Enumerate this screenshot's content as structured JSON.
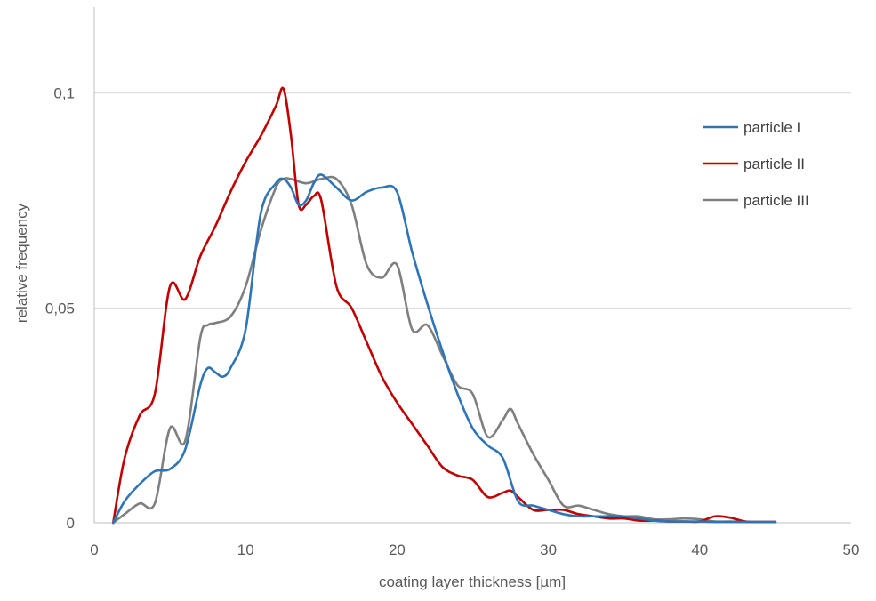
{
  "chart_data": {
    "type": "line",
    "title": "",
    "xlabel": "coating layer thickness [µm]",
    "ylabel": "relative frequency",
    "xlim": [
      0,
      50
    ],
    "ylim": [
      0,
      0.12
    ],
    "x_ticks": [
      0,
      10,
      20,
      30,
      40,
      50
    ],
    "x_tick_labels": [
      "0",
      "10",
      "20",
      "30",
      "40",
      "50"
    ],
    "y_ticks": [
      0,
      0.05,
      0.1
    ],
    "y_tick_labels": [
      "0",
      "0,05",
      "0,1"
    ],
    "grid": "horizontal",
    "legend_position": "right",
    "series": [
      {
        "name": "particle I",
        "color": "#2E75B6",
        "x": [
          1.25,
          2,
          3,
          4,
          5,
          6,
          7,
          7.5,
          8,
          8.5,
          9,
          10,
          11,
          12,
          12.5,
          13,
          13.5,
          14,
          14.5,
          15,
          16,
          17,
          18,
          19,
          20,
          21,
          22,
          23,
          24,
          25,
          26,
          27,
          28,
          29,
          30,
          31,
          32,
          33,
          34,
          35,
          36,
          37,
          38,
          39,
          40,
          41,
          42,
          43,
          44,
          45
        ],
        "y": [
          0,
          0.005,
          0.009,
          0.012,
          0.0125,
          0.017,
          0.032,
          0.036,
          0.035,
          0.034,
          0.036,
          0.045,
          0.072,
          0.079,
          0.08,
          0.078,
          0.074,
          0.075,
          0.079,
          0.081,
          0.078,
          0.075,
          0.077,
          0.078,
          0.077,
          0.063,
          0.051,
          0.04,
          0.03,
          0.022,
          0.018,
          0.015,
          0.005,
          0.004,
          0.003,
          0.002,
          0.0015,
          0.0015,
          0.0015,
          0.0015,
          0.001,
          0.0005,
          0.0003,
          0.0003,
          0.0003,
          0.0002,
          0.0002,
          0.0002,
          0.0002,
          0.0002
        ]
      },
      {
        "name": "particle II",
        "color": "#C00000",
        "x": [
          1.25,
          2,
          3,
          4,
          5,
          6,
          7,
          8,
          9,
          10,
          11,
          12,
          12.5,
          13,
          13.5,
          14,
          14.5,
          15,
          16,
          17,
          18,
          19,
          20,
          21,
          22,
          23,
          24,
          25,
          26,
          27,
          27.5,
          28,
          29,
          30,
          31,
          32,
          33,
          34,
          35,
          36,
          37,
          38,
          39,
          40,
          41,
          42,
          43,
          44,
          45
        ],
        "y": [
          0,
          0.015,
          0.025,
          0.03,
          0.055,
          0.052,
          0.062,
          0.069,
          0.077,
          0.084,
          0.09,
          0.097,
          0.101,
          0.09,
          0.074,
          0.074,
          0.076,
          0.075,
          0.055,
          0.05,
          0.042,
          0.034,
          0.028,
          0.023,
          0.018,
          0.013,
          0.011,
          0.01,
          0.006,
          0.007,
          0.0075,
          0.006,
          0.003,
          0.003,
          0.003,
          0.002,
          0.0015,
          0.001,
          0.001,
          0.0005,
          0.0005,
          0.0003,
          0.0003,
          0.0003,
          0.0015,
          0.0012,
          0.0003,
          0.0002,
          0.0002
        ]
      },
      {
        "name": "particle III",
        "color": "#7F7F7F",
        "x": [
          1.25,
          2,
          3,
          4,
          5,
          6,
          7,
          7.5,
          8,
          9,
          10,
          11,
          12,
          12.5,
          13,
          14,
          15,
          16,
          17,
          18,
          19,
          20,
          21,
          22,
          23,
          24,
          25,
          26,
          27,
          27.5,
          28,
          29,
          30,
          31,
          32,
          33,
          34,
          35,
          36,
          37,
          38,
          39,
          40,
          41,
          42,
          43,
          44,
          45
        ],
        "y": [
          0,
          0.002,
          0.0045,
          0.0045,
          0.022,
          0.019,
          0.043,
          0.046,
          0.0465,
          0.048,
          0.055,
          0.068,
          0.078,
          0.08,
          0.08,
          0.079,
          0.08,
          0.08,
          0.074,
          0.06,
          0.057,
          0.06,
          0.045,
          0.046,
          0.039,
          0.032,
          0.03,
          0.02,
          0.024,
          0.0265,
          0.023,
          0.016,
          0.01,
          0.004,
          0.004,
          0.003,
          0.002,
          0.0015,
          0.0015,
          0.0008,
          0.0008,
          0.001,
          0.0008,
          0.0003,
          0.0003,
          0.0002,
          0.0002,
          0.0002
        ]
      }
    ]
  }
}
